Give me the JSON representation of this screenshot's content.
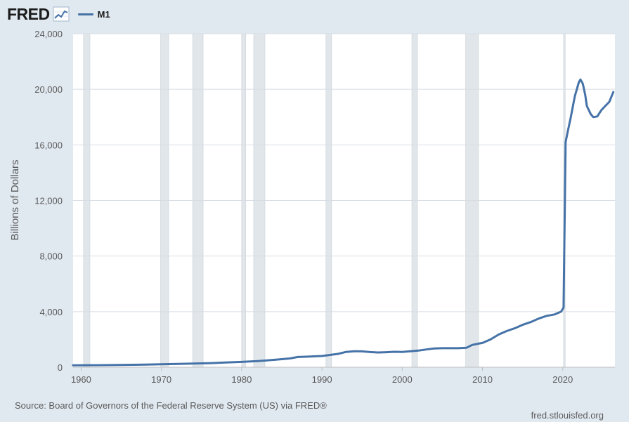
{
  "header": {
    "logo_text": "FRED",
    "logo_icon": "line-chart-icon",
    "legend_label": "M1"
  },
  "colors": {
    "series": "#4572a7",
    "background": "#e1e9f0",
    "plot_background": "#ffffff",
    "recession_band": "#e1e6ea",
    "gridline": "#d7dde3"
  },
  "footer": {
    "source": "Source: Board of Governors of the Federal Reserve System (US) via FRED®",
    "site": "fred.stlouisfed.org"
  },
  "chart_data": {
    "type": "line",
    "title": "",
    "xlabel": "",
    "ylabel": "Billions of Dollars",
    "xlim": [
      1959,
      2026.5
    ],
    "ylim": [
      0,
      24000
    ],
    "x_ticks": [
      1960,
      1970,
      1980,
      1990,
      2000,
      2010,
      2020
    ],
    "y_ticks": [
      0,
      4000,
      8000,
      12000,
      16000,
      20000,
      24000
    ],
    "y_tick_labels": [
      "0",
      "4,000",
      "8,000",
      "12,000",
      "16,000",
      "20,000",
      "24,000"
    ],
    "grid": true,
    "legend_placement": "top-left",
    "recessions": [
      [
        1960.3,
        1961.1
      ],
      [
        1969.9,
        1970.9
      ],
      [
        1973.9,
        1975.2
      ],
      [
        1980.0,
        1980.5
      ],
      [
        1981.5,
        1982.9
      ],
      [
        1990.5,
        1991.2
      ],
      [
        2001.2,
        2001.9
      ],
      [
        2007.9,
        2009.5
      ],
      [
        2020.1,
        2020.3
      ]
    ],
    "series": [
      {
        "name": "M1",
        "points": [
          [
            1959.0,
            140
          ],
          [
            1962.0,
            145
          ],
          [
            1965.0,
            165
          ],
          [
            1968.0,
            190
          ],
          [
            1970.0,
            210
          ],
          [
            1972.0,
            240
          ],
          [
            1974.0,
            270
          ],
          [
            1976.0,
            295
          ],
          [
            1978.0,
            340
          ],
          [
            1980.0,
            385
          ],
          [
            1982.0,
            440
          ],
          [
            1984.0,
            530
          ],
          [
            1986.0,
            630
          ],
          [
            1987.0,
            740
          ],
          [
            1988.0,
            760
          ],
          [
            1990.0,
            810
          ],
          [
            1992.0,
            960
          ],
          [
            1993.0,
            1100
          ],
          [
            1994.0,
            1150
          ],
          [
            1995.0,
            1140
          ],
          [
            1996.0,
            1090
          ],
          [
            1997.0,
            1060
          ],
          [
            1998.0,
            1080
          ],
          [
            1999.0,
            1110
          ],
          [
            2000.0,
            1100
          ],
          [
            2001.0,
            1150
          ],
          [
            2002.0,
            1200
          ],
          [
            2003.0,
            1280
          ],
          [
            2004.0,
            1350
          ],
          [
            2005.0,
            1370
          ],
          [
            2006.0,
            1370
          ],
          [
            2007.0,
            1370
          ],
          [
            2008.0,
            1400
          ],
          [
            2008.7,
            1600
          ],
          [
            2009.5,
            1700
          ],
          [
            2010.0,
            1750
          ],
          [
            2011.0,
            2000
          ],
          [
            2012.0,
            2350
          ],
          [
            2013.0,
            2600
          ],
          [
            2014.0,
            2800
          ],
          [
            2015.0,
            3050
          ],
          [
            2016.0,
            3250
          ],
          [
            2017.0,
            3500
          ],
          [
            2018.0,
            3700
          ],
          [
            2019.0,
            3800
          ],
          [
            2019.8,
            4000
          ],
          [
            2020.1,
            4300
          ],
          [
            2020.35,
            16200
          ],
          [
            2020.6,
            16900
          ],
          [
            2021.0,
            18000
          ],
          [
            2021.5,
            19500
          ],
          [
            2022.0,
            20500
          ],
          [
            2022.2,
            20700
          ],
          [
            2022.5,
            20400
          ],
          [
            2022.8,
            19600
          ],
          [
            2023.0,
            18800
          ],
          [
            2023.5,
            18200
          ],
          [
            2023.8,
            18000
          ],
          [
            2024.3,
            18050
          ],
          [
            2024.8,
            18500
          ],
          [
            2025.3,
            18800
          ],
          [
            2025.8,
            19100
          ],
          [
            2026.3,
            19800
          ]
        ]
      }
    ]
  }
}
